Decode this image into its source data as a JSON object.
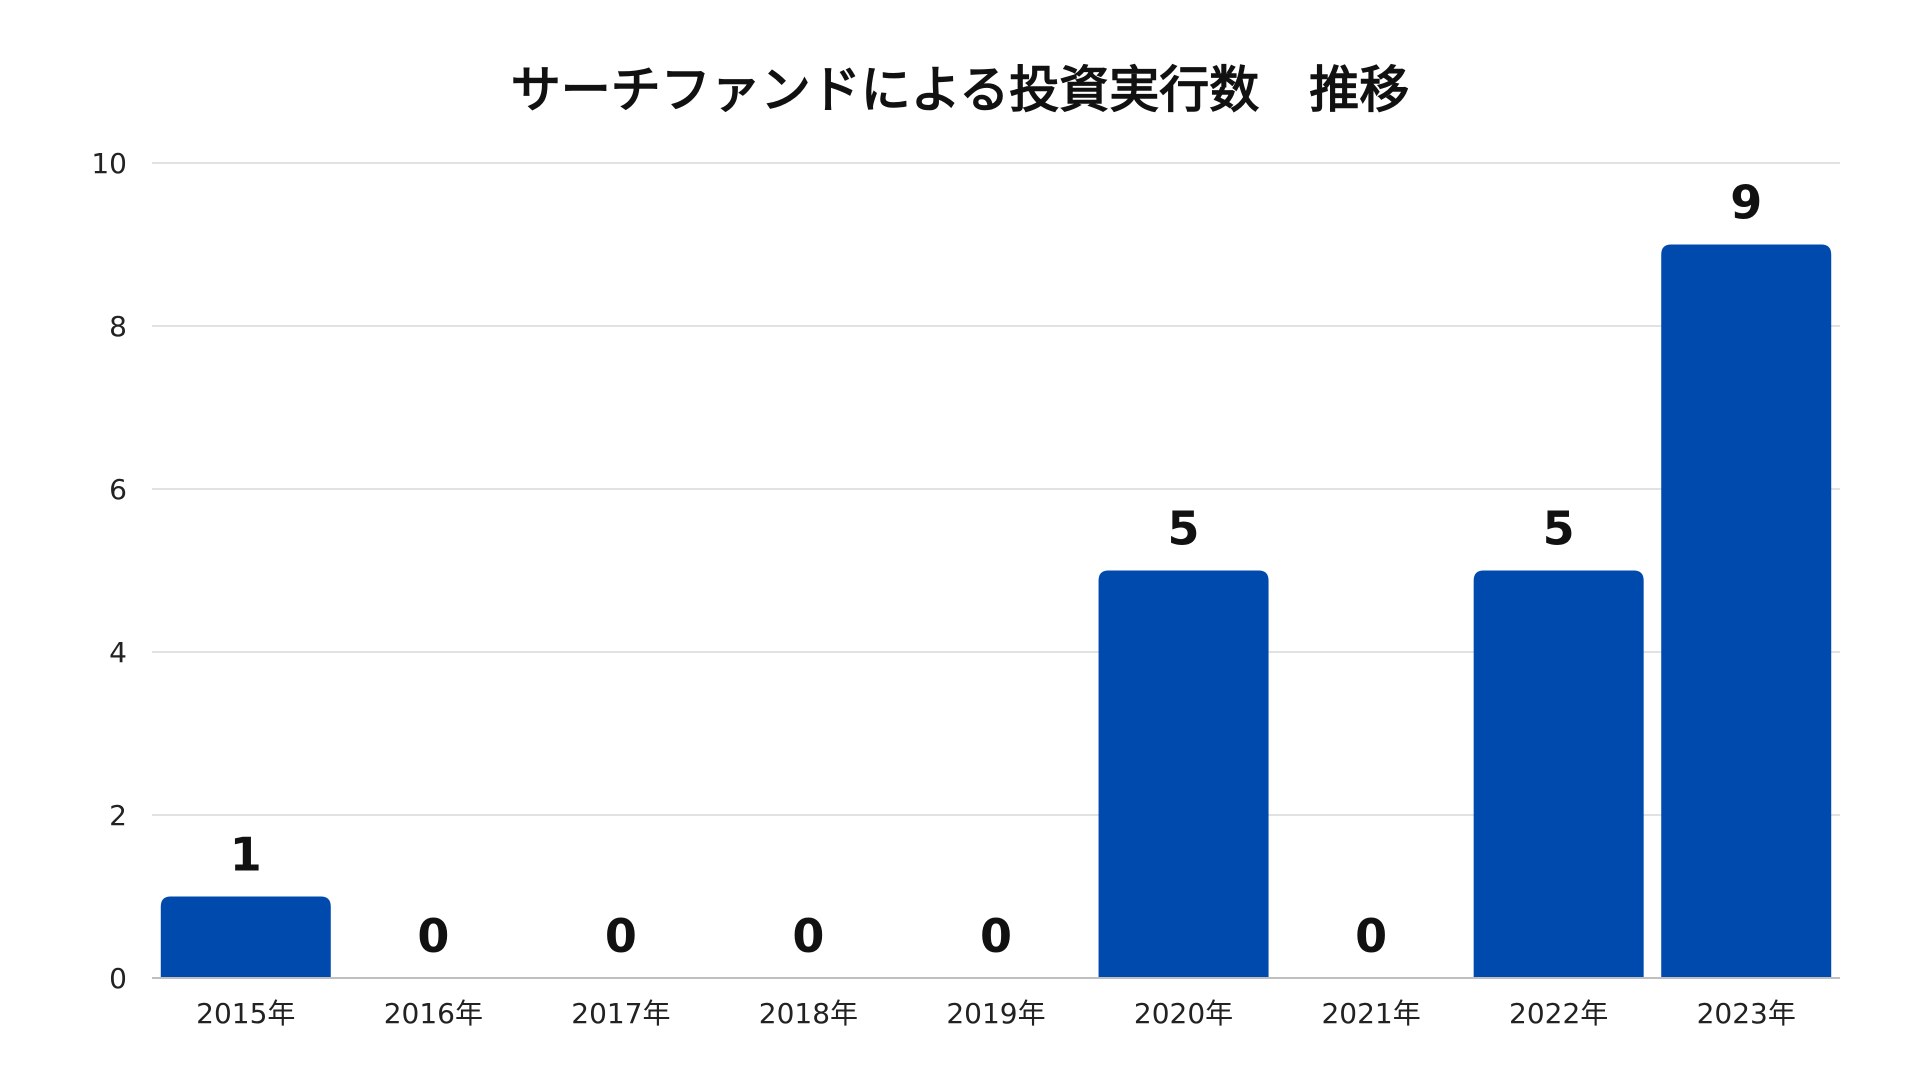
{
  "chart_data": {
    "type": "bar",
    "title": "サーチファンドによる投資実行数　推移",
    "xlabel": "",
    "ylabel": "",
    "categories": [
      "2015年",
      "2016年",
      "2017年",
      "2018年",
      "2019年",
      "2020年",
      "2021年",
      "2022年",
      "2023年"
    ],
    "values": [
      1,
      0,
      0,
      0,
      0,
      5,
      0,
      5,
      9
    ],
    "data_labels": [
      "1",
      "0",
      "0",
      "0",
      "0",
      "5",
      "0",
      "5",
      "9"
    ],
    "ylim": [
      0,
      10
    ],
    "yticks": [
      0,
      2,
      4,
      6,
      8,
      10
    ],
    "ytick_labels": [
      "0",
      "2",
      "4",
      "6",
      "8",
      "10"
    ],
    "grid": true,
    "legend": "none",
    "colors": {
      "bar": "#004AAD",
      "grid": "#d9d9d9",
      "axis": "#bfbfbf"
    }
  }
}
